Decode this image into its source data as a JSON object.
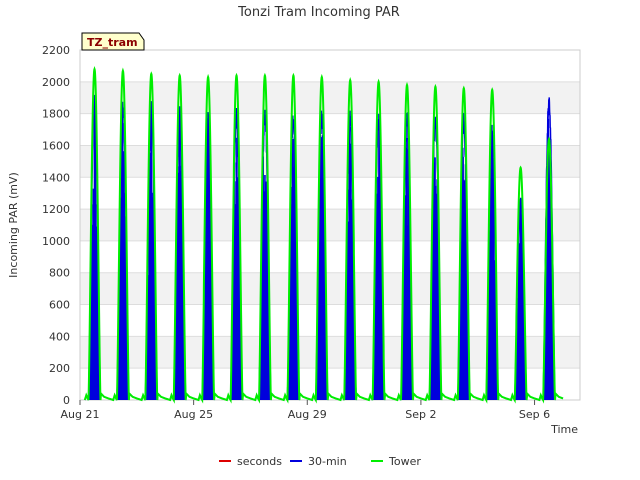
{
  "chart_data": {
    "type": "line",
    "title": "Tonzi Tram Incoming PAR",
    "xlabel": "Time",
    "ylabel": "Incoming PAR (mV)",
    "site_tag": "TZ_tram",
    "ylim": [
      0,
      2200
    ],
    "xlim": [
      0,
      17.6
    ],
    "yticks": [
      0,
      200,
      400,
      600,
      800,
      1000,
      1200,
      1400,
      1600,
      1800,
      2000,
      2200
    ],
    "xticks": [
      {
        "x": 0,
        "label": "Aug 21"
      },
      {
        "x": 4,
        "label": "Aug 25"
      },
      {
        "x": 8,
        "label": "Aug 29"
      },
      {
        "x": 12,
        "label": "Sep 2"
      },
      {
        "x": 16,
        "label": "Sep 6"
      }
    ],
    "grid": true,
    "legend_position": "bottom",
    "series": [
      {
        "name": "seconds",
        "color": "#dd0000",
        "values": []
      },
      {
        "name": "30-min",
        "color": "#0000dd",
        "daily_peak_values": [
          1920,
          1900,
          1880,
          1860,
          1840,
          1840,
          1860,
          1840,
          1850,
          1830,
          1820,
          1820,
          1820,
          1810,
          1740,
          1300,
          1920
        ]
      },
      {
        "name": "Tower",
        "color": "#00ee00",
        "daily_peak_values": [
          2080,
          2070,
          2050,
          2040,
          2030,
          2040,
          2040,
          2040,
          2030,
          2010,
          2000,
          1980,
          1970,
          1960,
          1950,
          1460,
          1640
        ]
      }
    ]
  }
}
